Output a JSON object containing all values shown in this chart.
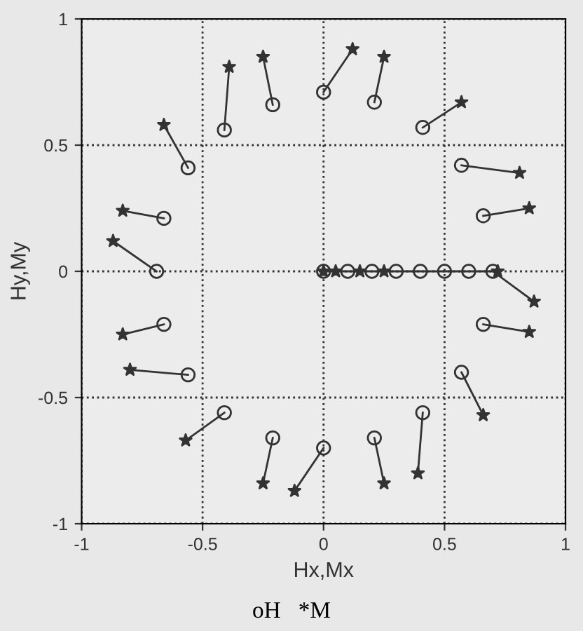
{
  "chart_data": {
    "type": "line",
    "xlabel": "Hx,Mx",
    "ylabel": "Hy,My",
    "annotations": [
      "oH   *M"
    ],
    "xlim": [
      -1,
      1
    ],
    "ylim": [
      -1,
      1
    ],
    "xticks": [
      -1,
      -0.5,
      0,
      0.5,
      1
    ],
    "yticks": [
      -1,
      -0.5,
      0,
      0.5,
      1
    ],
    "grid": true,
    "series": [
      {
        "color": "#333333",
        "x": [
          -0.69,
          -0.87
        ],
        "values": [
          0,
          0.12
        ]
      },
      {
        "color": "#333333",
        "x": [
          -0.66,
          -0.83
        ],
        "values": [
          0.21,
          0.24
        ]
      },
      {
        "color": "#333333",
        "x": [
          -0.56,
          -0.66
        ],
        "values": [
          0.41,
          0.58
        ]
      },
      {
        "color": "#333333",
        "x": [
          -0.41,
          -0.39
        ],
        "values": [
          0.56,
          0.81
        ]
      },
      {
        "color": "#333333",
        "x": [
          -0.21,
          -0.25
        ],
        "values": [
          0.66,
          0.85
        ]
      },
      {
        "color": "#333333",
        "x": [
          0,
          0.12
        ],
        "values": [
          0.71,
          0.88
        ]
      },
      {
        "color": "#333333",
        "x": [
          0.21,
          0.25
        ],
        "values": [
          0.67,
          0.85
        ]
      },
      {
        "color": "#333333",
        "x": [
          0.41,
          0.57
        ],
        "values": [
          0.57,
          0.67
        ]
      },
      {
        "color": "#333333",
        "x": [
          0.57,
          0.81
        ],
        "values": [
          0.42,
          0.39
        ]
      },
      {
        "color": "#333333",
        "x": [
          0.66,
          0.85
        ],
        "values": [
          0.22,
          0.25
        ]
      },
      {
        "color": "#333333",
        "x": [
          0.7,
          0.87
        ],
        "values": [
          0,
          -0.12
        ]
      },
      {
        "color": "#333333",
        "x": [
          0,
          0.72
        ],
        "values": [
          0,
          0
        ]
      },
      {
        "color": "#333333",
        "x": [
          0.66,
          0.85
        ],
        "values": [
          -0.21,
          -0.24
        ]
      },
      {
        "color": "#333333",
        "x": [
          0.57,
          0.66
        ],
        "values": [
          -0.4,
          -0.57
        ]
      },
      {
        "color": "#333333",
        "x": [
          0.41,
          0.39
        ],
        "values": [
          -0.56,
          -0.8
        ]
      },
      {
        "color": "#333333",
        "x": [
          0.21,
          0.25
        ],
        "values": [
          -0.66,
          -0.84
        ]
      },
      {
        "color": "#333333",
        "x": [
          0,
          -0.12
        ],
        "values": [
          -0.7,
          -0.87
        ]
      },
      {
        "color": "#333333",
        "x": [
          -0.21,
          -0.25
        ],
        "values": [
          -0.66,
          -0.84
        ]
      },
      {
        "color": "#333333",
        "x": [
          -0.41,
          -0.57
        ],
        "values": [
          -0.56,
          -0.67
        ]
      },
      {
        "color": "#333333",
        "x": [
          -0.56,
          -0.8
        ],
        "values": [
          -0.41,
          -0.39
        ]
      },
      {
        "color": "#333333",
        "x": [
          -0.66,
          -0.83
        ],
        "values": [
          -0.21,
          -0.25
        ]
      },
      {
        "type": "scatter",
        "color": "#333333",
        "marker": "circle",
        "x": [
          -0.69,
          -0.66,
          -0.56,
          -0.41,
          -0.21,
          0,
          0.21,
          0.41,
          0.57,
          0.66,
          0.7,
          0.66,
          0.57,
          0.41,
          0.21,
          0,
          -0.21,
          -0.41,
          -0.56,
          -0.66,
          0,
          0.1,
          0.2,
          0.3,
          0.4,
          0.5,
          0.6
        ],
        "values": [
          0,
          0.21,
          0.41,
          0.56,
          0.66,
          0.71,
          0.67,
          0.57,
          0.42,
          0.22,
          0,
          -0.21,
          -0.4,
          -0.56,
          -0.66,
          -0.7,
          -0.66,
          -0.56,
          -0.41,
          -0.21,
          0,
          0,
          0,
          0,
          0,
          0,
          0
        ]
      },
      {
        "type": "scatter",
        "color": "#333333",
        "marker": "star",
        "x": [
          -0.87,
          -0.83,
          -0.66,
          -0.39,
          -0.25,
          0.12,
          0.25,
          0.57,
          0.81,
          0.85,
          0.87,
          0.85,
          0.66,
          0.39,
          0.25,
          -0.12,
          -0.25,
          -0.57,
          -0.8,
          -0.83,
          0,
          0.05,
          0.15,
          0.25,
          0.72
        ],
        "values": [
          0.12,
          0.24,
          0.58,
          0.81,
          0.85,
          0.88,
          0.85,
          0.67,
          0.39,
          0.25,
          -0.12,
          -0.24,
          -0.57,
          -0.8,
          -0.84,
          -0.87,
          -0.84,
          -0.67,
          -0.39,
          -0.25,
          0,
          0,
          0,
          0,
          0
        ]
      }
    ]
  }
}
